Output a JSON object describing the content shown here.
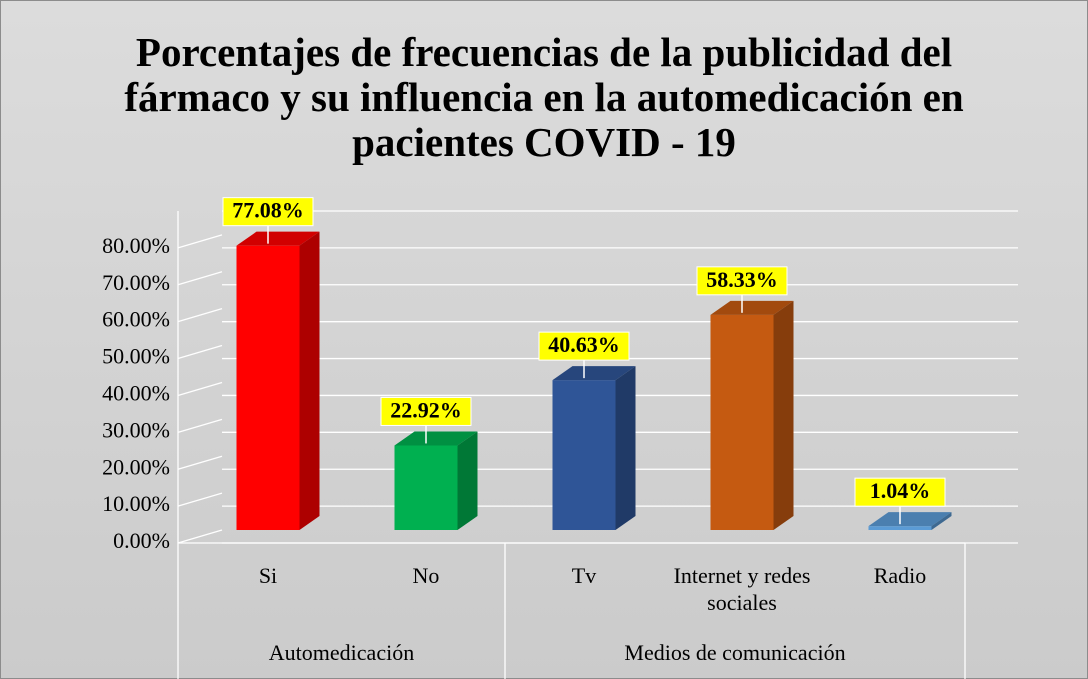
{
  "chart_data": {
    "type": "bar3d",
    "title": "Porcentajes de frecuencias de la publicidad del fármaco y su influencia en la automedicación en pacientes COVID - 19",
    "categories": [
      "Si",
      "No",
      "Tv",
      "Internet y redes sociales",
      "Radio"
    ],
    "groups": [
      {
        "name": "Automedicación",
        "size": 2
      },
      {
        "name": "Medios de comunicación",
        "size": 3
      }
    ],
    "values": [
      77.08,
      22.92,
      40.63,
      58.33,
      1.04
    ],
    "value_labels": [
      "77.08%",
      "22.92%",
      "40.63%",
      "58.33%",
      "1.04%"
    ],
    "colors": [
      "#ff0000",
      "#00b050",
      "#2f5597",
      "#c55a11",
      "#5b9bd5"
    ],
    "ylim": [
      0,
      90
    ],
    "yticks": [
      {
        "value": 0,
        "label": "0.00%"
      },
      {
        "value": 10,
        "label": "10.00%"
      },
      {
        "value": 20,
        "label": "20.00%"
      },
      {
        "value": 30,
        "label": "30.00%"
      },
      {
        "value": 40,
        "label": "40.00%"
      },
      {
        "value": 50,
        "label": "50.00%"
      },
      {
        "value": 60,
        "label": "60.00%"
      },
      {
        "value": 70,
        "label": "70.00%"
      },
      {
        "value": 80,
        "label": "80.00%"
      }
    ],
    "grid": true
  }
}
